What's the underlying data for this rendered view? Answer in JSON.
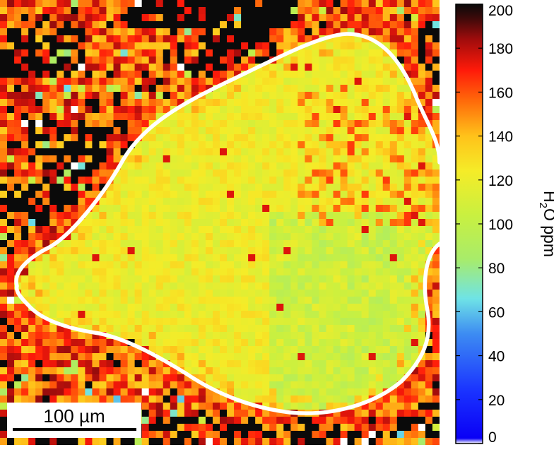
{
  "chart_data": {
    "type": "heatmap",
    "description_visible": false,
    "colorbar": {
      "label_main": "H",
      "label_sub": "2",
      "label_rest": "O ppm",
      "range": [
        0,
        200
      ],
      "ticks": [
        {
          "value": 0,
          "label": "0"
        },
        {
          "value": 20,
          "label": "20"
        },
        {
          "value": 40,
          "label": "40"
        },
        {
          "value": 60,
          "label": "60"
        },
        {
          "value": 80,
          "label": "80"
        },
        {
          "value": 100,
          "label": "100"
        },
        {
          "value": 120,
          "label": "120"
        },
        {
          "value": 140,
          "label": "140"
        },
        {
          "value": 160,
          "label": "160"
        },
        {
          "value": 180,
          "label": "180"
        },
        {
          "value": 200,
          "label": "200"
        }
      ],
      "colormap": "jet-like (white at 0, blue, cyan, green, yellow, orange, red, dark red, black at 200)"
    },
    "grid": {
      "cols": 62,
      "rows": 63
    },
    "grain_region": {
      "interior_level_ppm": [
        100,
        130
      ],
      "rim_level_ppm": [
        140,
        200
      ]
    },
    "scale_bar": {
      "label": "100 µm",
      "length_um": 100
    }
  }
}
